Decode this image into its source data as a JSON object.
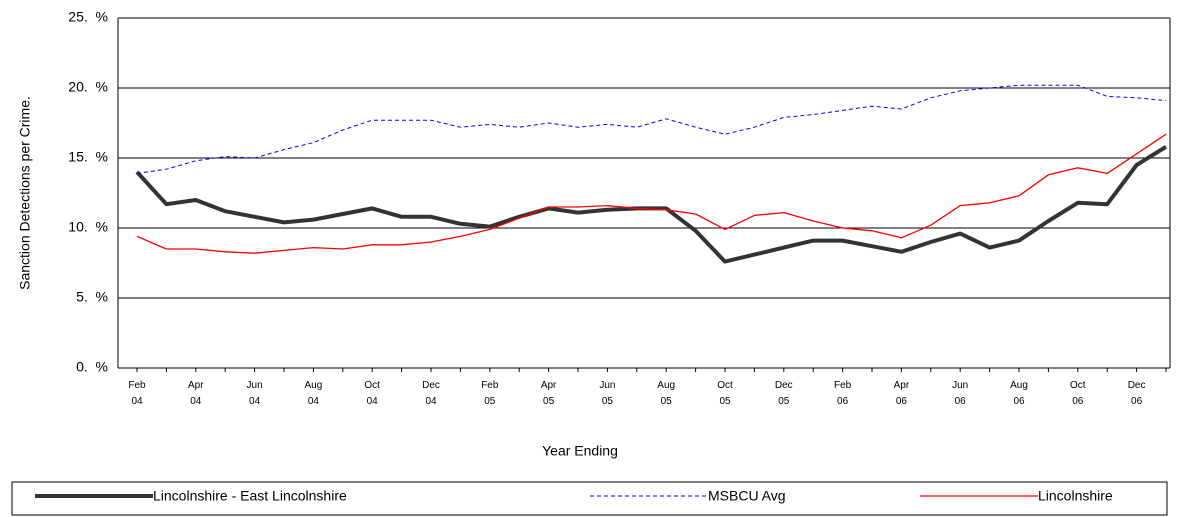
{
  "chart_data": {
    "type": "line",
    "ylabel": "Sanction Detections per Crime.",
    "xlabel": "Year Ending",
    "categories": [
      [
        "Feb",
        "04"
      ],
      null,
      [
        "Apr",
        "04"
      ],
      null,
      [
        "Jun",
        "04"
      ],
      null,
      [
        "Aug",
        "04"
      ],
      null,
      [
        "Oct",
        "04"
      ],
      null,
      [
        "Dec",
        "04"
      ],
      null,
      [
        "Feb",
        "05"
      ],
      null,
      [
        "Apr",
        "05"
      ],
      null,
      [
        "Jun",
        "05"
      ],
      null,
      [
        "Aug",
        "05"
      ],
      null,
      [
        "Oct",
        "05"
      ],
      null,
      [
        "Dec",
        "05"
      ],
      null,
      [
        "Feb",
        "06"
      ],
      null,
      [
        "Apr",
        "06"
      ],
      null,
      [
        "Jun",
        "06"
      ],
      null,
      [
        "Aug",
        "06"
      ],
      null,
      [
        "Oct",
        "06"
      ],
      null,
      [
        "Dec",
        "06"
      ],
      null
    ],
    "ylim": [
      0,
      25
    ],
    "yticks": [
      {
        "value": 0,
        "label": "0.  %"
      },
      {
        "value": 5,
        "label": "5.  %"
      },
      {
        "value": 10,
        "label": "10.  %"
      },
      {
        "value": 15,
        "label": "15.  %"
      },
      {
        "value": 20,
        "label": "20.  %"
      },
      {
        "value": 25,
        "label": "25.  %"
      }
    ],
    "grid": true,
    "series": [
      {
        "name": "Lincolnshire - East Lincolnshire",
        "color": "#333333",
        "style": "solid",
        "width": 4,
        "values": [
          14.0,
          11.7,
          12.0,
          11.2,
          10.8,
          10.4,
          10.6,
          11.0,
          11.4,
          10.8,
          10.8,
          10.3,
          10.1,
          10.8,
          11.4,
          11.1,
          11.3,
          11.4,
          11.4,
          9.8,
          7.6,
          8.1,
          8.6,
          9.1,
          9.1,
          8.7,
          8.3,
          9.0,
          9.6,
          8.6,
          9.1,
          10.5,
          11.8,
          11.7,
          14.5,
          15.8
        ]
      },
      {
        "name": "MSBCU Avg",
        "color": "#0000ff",
        "style": "dashed",
        "width": 1,
        "values": [
          13.9,
          14.2,
          14.8,
          15.1,
          15.0,
          15.6,
          16.1,
          17.0,
          17.7,
          17.7,
          17.7,
          17.2,
          17.4,
          17.2,
          17.5,
          17.2,
          17.4,
          17.2,
          17.8,
          17.2,
          16.7,
          17.2,
          17.9,
          18.1,
          18.4,
          18.7,
          18.5,
          19.3,
          19.8,
          20.0,
          20.2,
          20.2,
          20.2,
          19.4,
          19.3,
          19.1
        ]
      },
      {
        "name": "Lincolnshire",
        "color": "#ff0000",
        "style": "solid",
        "width": 1.3,
        "values": [
          9.4,
          8.5,
          8.5,
          8.3,
          8.2,
          8.4,
          8.6,
          8.5,
          8.8,
          8.8,
          9.0,
          9.4,
          9.9,
          10.7,
          11.5,
          11.5,
          11.6,
          11.4,
          11.3,
          11.0,
          9.9,
          10.9,
          11.1,
          10.5,
          10.0,
          9.8,
          9.3,
          10.2,
          11.6,
          11.8,
          12.3,
          13.8,
          14.3,
          13.9,
          15.3,
          16.7
        ]
      }
    ]
  }
}
